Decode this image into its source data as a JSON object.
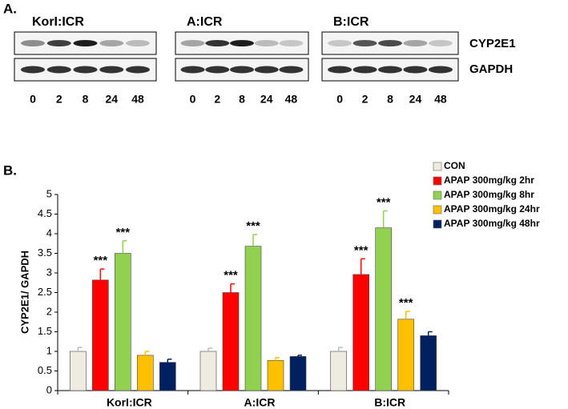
{
  "blot": {
    "panel_label": "A.",
    "groups": [
      "KorI:ICR",
      "A:ICR",
      "B:ICR"
    ],
    "proteins": [
      "CYP2E1",
      "GAPDH"
    ],
    "lanes": [
      0,
      2,
      8,
      24,
      48
    ]
  },
  "chart_data": {
    "type": "bar",
    "panel_label": "B.",
    "y_label": "CYP2E1/ GAPDH",
    "categories": [
      "KorI:ICR",
      "A:ICR",
      "B:ICR"
    ],
    "ylim": [
      0,
      5
    ],
    "yticks": [
      0,
      0.5,
      1,
      1.5,
      2,
      2.5,
      3,
      3.5,
      4,
      4.5,
      5
    ],
    "series": [
      {
        "name": "CON",
        "color": "#eeece1",
        "values": [
          1.0,
          1.0,
          1.0
        ],
        "errors": [
          0.1,
          0.08,
          0.1
        ],
        "significance": [
          null,
          null,
          null
        ]
      },
      {
        "name": "APAP 300mg/kg 2hr",
        "color": "#ff0000",
        "values": [
          2.82,
          2.5,
          2.96
        ],
        "errors": [
          0.28,
          0.22,
          0.4
        ],
        "significance": [
          "***",
          "***",
          "***"
        ]
      },
      {
        "name": "APAP 300mg/kg 8hr",
        "color": "#92d050",
        "values": [
          3.5,
          3.68,
          4.15
        ],
        "errors": [
          0.32,
          0.3,
          0.43
        ],
        "significance": [
          "***",
          "***",
          "***"
        ]
      },
      {
        "name": "APAP 300mg/kg 24hr",
        "color": "#ffc000",
        "values": [
          0.9,
          0.77,
          1.82
        ],
        "errors": [
          0.1,
          0.07,
          0.2
        ],
        "significance": [
          null,
          null,
          "***"
        ]
      },
      {
        "name": "APAP 300mg/kg 48hr",
        "color": "#002060",
        "values": [
          0.72,
          0.87,
          1.4
        ],
        "errors": [
          0.08,
          0.03,
          0.1
        ],
        "significance": [
          null,
          null,
          null
        ]
      }
    ]
  }
}
